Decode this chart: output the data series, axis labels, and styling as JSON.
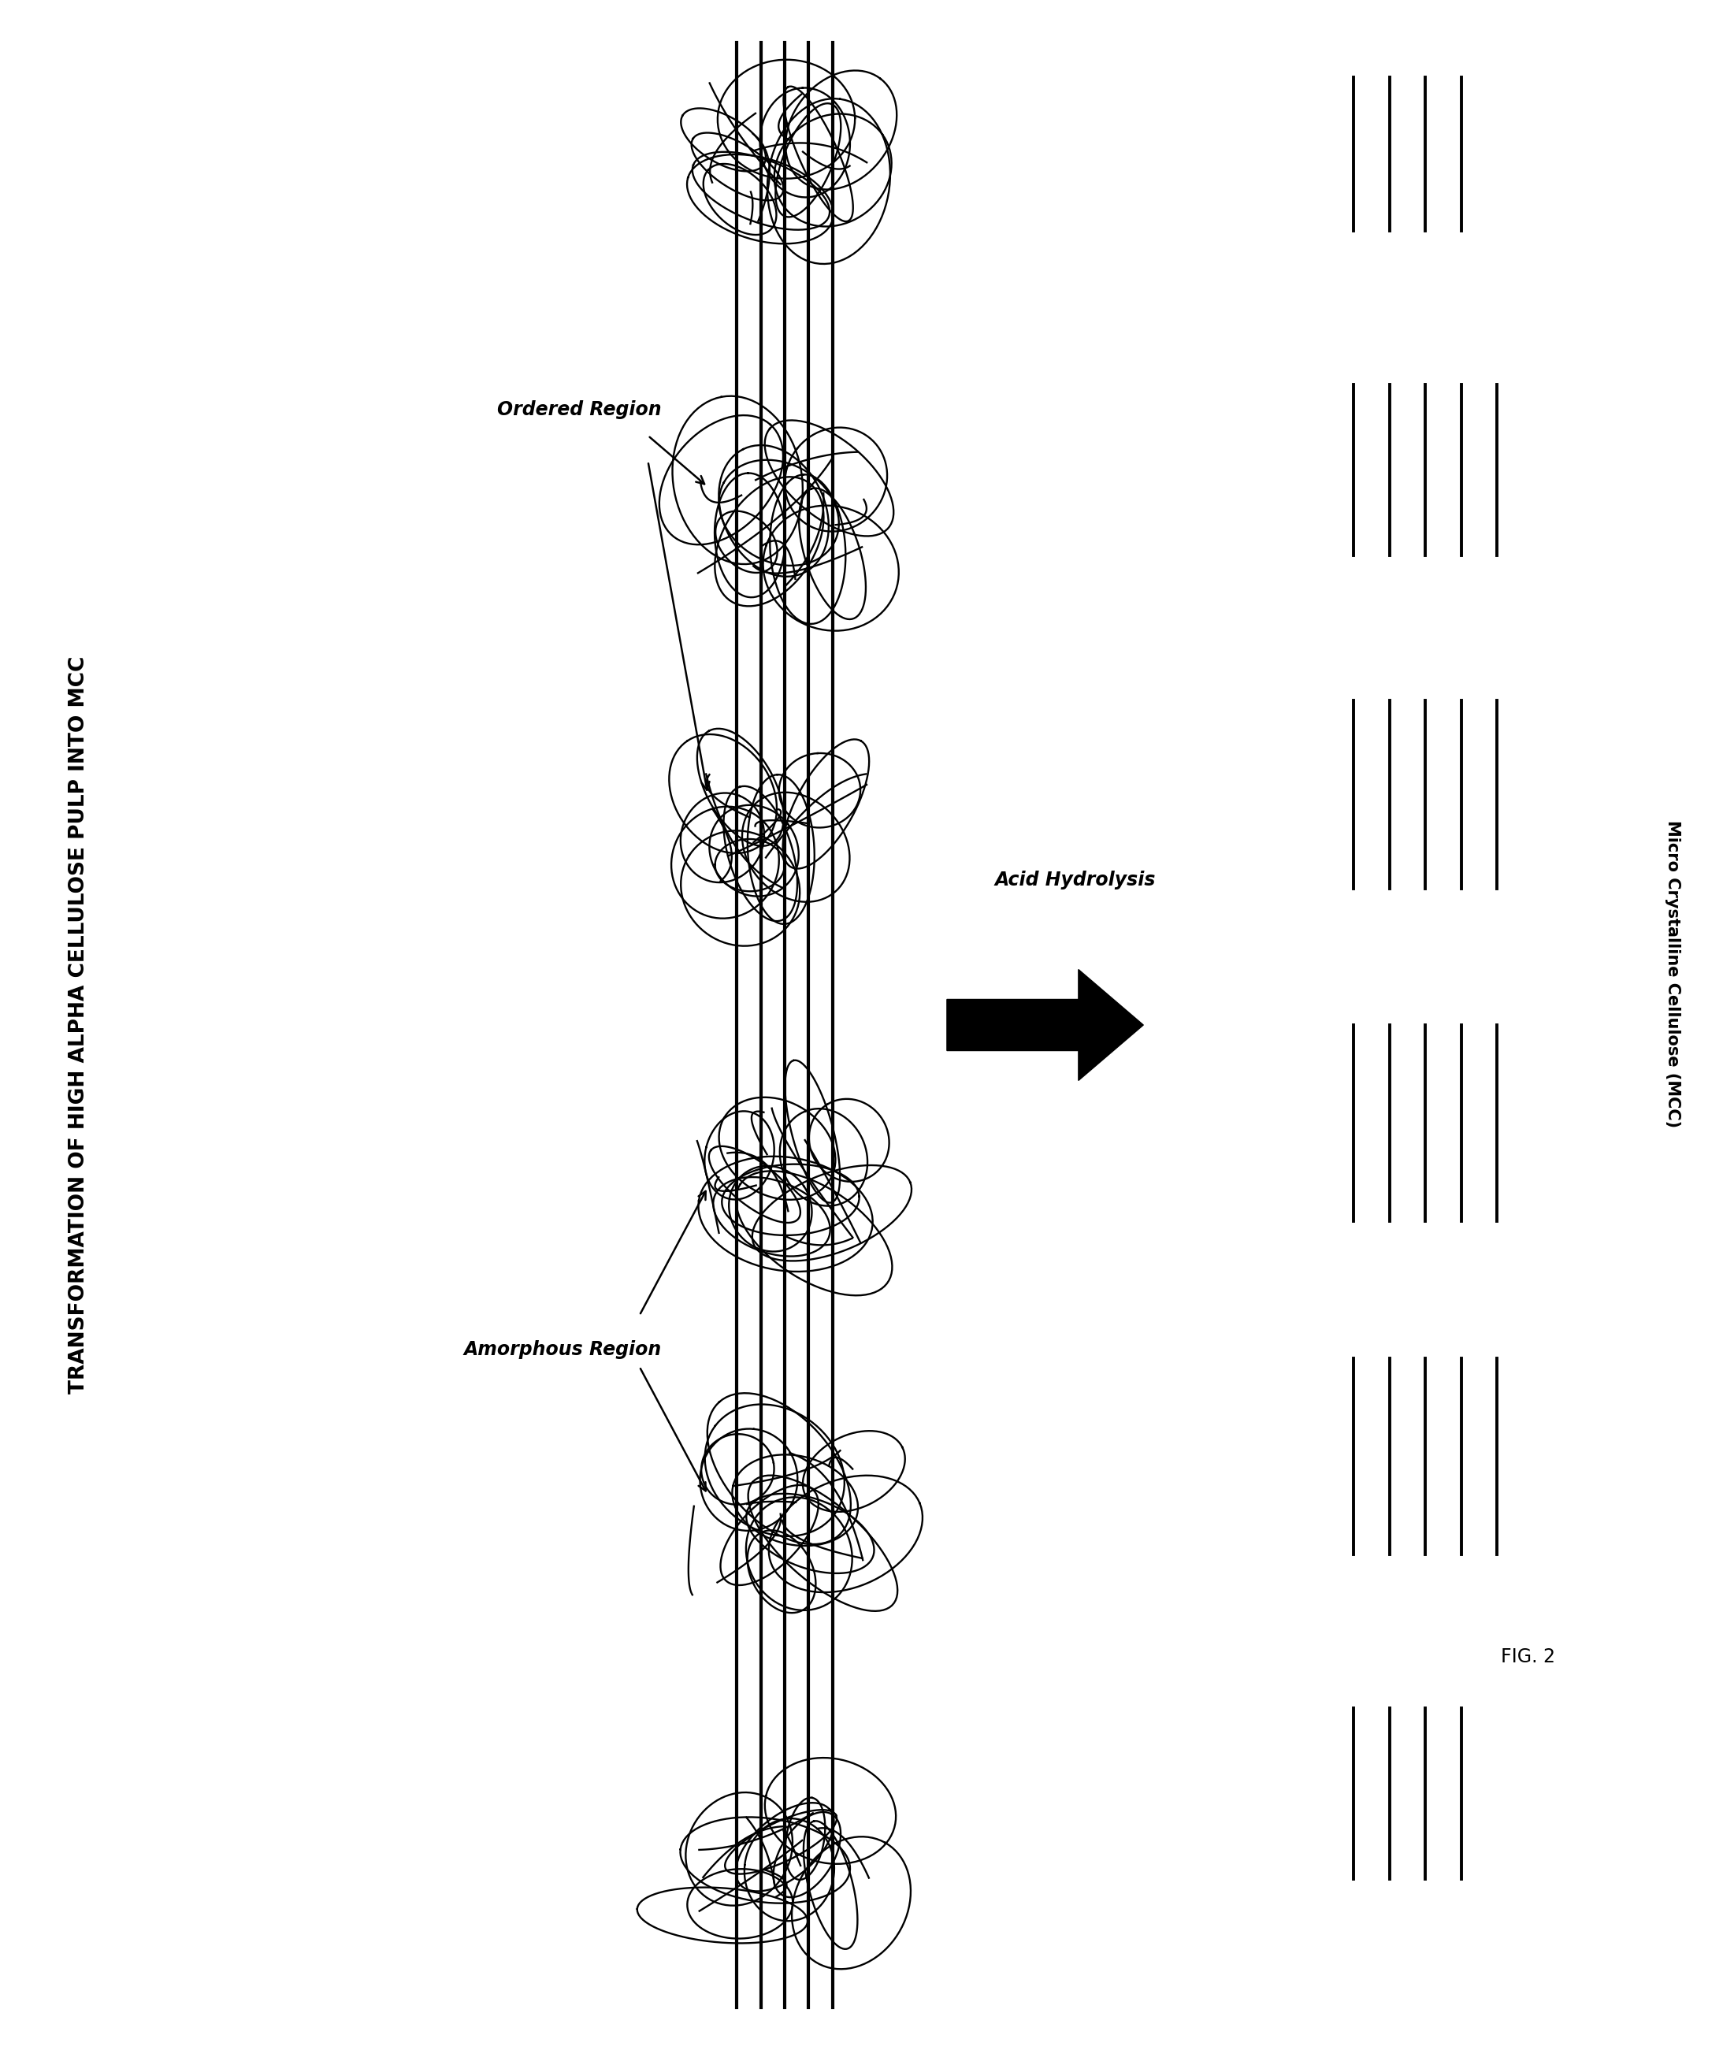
{
  "title": "TRANSFORMATION OF HIGH ALPHA CELLULOSE PULP INTO MCC",
  "acid_hydrolysis_label": "Acid Hydrolysis",
  "ordered_region_label": "Ordered Region",
  "amorphous_region_label": "Amorphous Region",
  "mcc_label": "Micro Crystalline Cellulose (MCC)",
  "fig_label": "FIG. 2",
  "bg_color": "#ffffff",
  "line_color": "#000000",
  "fig_width": 21.87,
  "fig_height": 26.02
}
